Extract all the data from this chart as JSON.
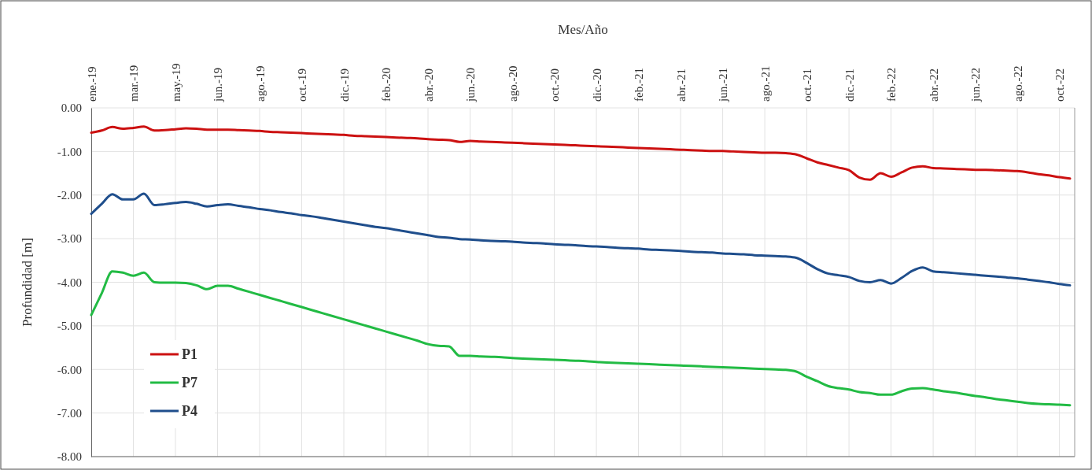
{
  "chart_data": {
    "type": "line",
    "xlabel": "Mes/Año",
    "ylabel": "Profundidad [m]",
    "categories": [
      "ene.-19",
      null,
      null,
      null,
      "mar.-19",
      null,
      null,
      null,
      "may.-19",
      null,
      null,
      null,
      "jun.-19",
      null,
      null,
      null,
      "ago.-19",
      null,
      null,
      null,
      "oct.-19",
      null,
      null,
      null,
      "dic.-19",
      null,
      null,
      null,
      "feb.-20",
      null,
      null,
      null,
      "abr.-20",
      null,
      null,
      null,
      "jun.-20",
      null,
      null,
      null,
      "ago.-20",
      null,
      null,
      null,
      "oct.-20",
      null,
      null,
      null,
      "dic.-20",
      null,
      null,
      null,
      "feb.-21",
      null,
      null,
      null,
      "abr.-21",
      null,
      null,
      null,
      "jun.-21",
      null,
      null,
      null,
      "ago.-21",
      null,
      null,
      null,
      "oct.-21",
      null,
      null,
      null,
      "dic.-21",
      null,
      null,
      null,
      "feb.-22",
      null,
      null,
      null,
      "abr.-22",
      null,
      null,
      null,
      "jun.-22",
      null,
      null,
      null,
      "ago.-22",
      null,
      null,
      null,
      "oct.-22",
      null
    ],
    "ylim": [
      -8,
      0
    ],
    "yticks": [
      {
        "value": 0,
        "label": "0.00"
      },
      {
        "value": -1,
        "label": "-1.00"
      },
      {
        "value": -2,
        "label": "-2.00"
      },
      {
        "value": -3,
        "label": "-3.00"
      },
      {
        "value": -4,
        "label": "-4.00"
      },
      {
        "value": -5,
        "label": "-5.00"
      },
      {
        "value": -6,
        "label": "-6.00"
      },
      {
        "value": -7,
        "label": "-7.00"
      },
      {
        "value": -8,
        "label": "-8.00"
      }
    ],
    "grid": true,
    "legend": "bottom left",
    "line_style": "solid",
    "series": [
      {
        "name": "P1",
        "color": "#cc1111",
        "values": [
          -0.57,
          -0.52,
          -0.44,
          -0.48,
          -0.46,
          -0.43,
          -0.52,
          -0.51,
          -0.49,
          -0.47,
          -0.48,
          -0.5,
          -0.5,
          -0.5,
          -0.51,
          -0.52,
          -0.53,
          -0.55,
          -0.56,
          -0.57,
          -0.58,
          -0.59,
          -0.6,
          -0.61,
          -0.62,
          -0.64,
          -0.65,
          -0.66,
          -0.67,
          -0.68,
          -0.69,
          -0.7,
          -0.72,
          -0.73,
          -0.74,
          -0.78,
          -0.76,
          -0.77,
          -0.78,
          -0.79,
          -0.8,
          -0.81,
          -0.82,
          -0.83,
          -0.84,
          -0.85,
          -0.86,
          -0.87,
          -0.88,
          -0.89,
          -0.9,
          -0.91,
          -0.92,
          -0.93,
          -0.94,
          -0.95,
          -0.96,
          -0.97,
          -0.98,
          -0.99,
          -0.99,
          -1.0,
          -1.01,
          -1.02,
          -1.03,
          -1.03,
          -1.04,
          -1.07,
          -1.16,
          -1.25,
          -1.31,
          -1.37,
          -1.43,
          -1.6,
          -1.65,
          -1.5,
          -1.58,
          -1.48,
          -1.37,
          -1.34,
          -1.38,
          -1.39,
          -1.4,
          -1.41,
          -1.42,
          -1.42,
          -1.43,
          -1.44,
          -1.45,
          -1.48,
          -1.52,
          -1.55,
          -1.59,
          -1.62
        ]
      },
      {
        "name": "P7",
        "color": "#22bb44",
        "values": [
          -4.75,
          -4.25,
          -3.75,
          -3.78,
          -3.85,
          -3.78,
          -4.0,
          -4.01,
          -4.01,
          -4.02,
          -4.07,
          -4.16,
          -4.08,
          -4.08,
          -4.15,
          -4.22,
          -4.29,
          -4.36,
          -4.43,
          -4.5,
          -4.57,
          -4.64,
          -4.71,
          -4.78,
          -4.85,
          -4.92,
          -4.99,
          -5.06,
          -5.13,
          -5.2,
          -5.27,
          -5.34,
          -5.42,
          -5.46,
          -5.47,
          -5.69,
          -5.69,
          -5.7,
          -5.71,
          -5.72,
          -5.74,
          -5.75,
          -5.76,
          -5.77,
          -5.78,
          -5.79,
          -5.8,
          -5.81,
          -5.83,
          -5.84,
          -5.85,
          -5.86,
          -5.87,
          -5.88,
          -5.89,
          -5.9,
          -5.91,
          -5.92,
          -5.93,
          -5.94,
          -5.95,
          -5.96,
          -5.97,
          -5.98,
          -5.99,
          -6.0,
          -6.01,
          -6.05,
          -6.17,
          -6.27,
          -6.38,
          -6.43,
          -6.46,
          -6.52,
          -6.54,
          -6.58,
          -6.58,
          -6.5,
          -6.44,
          -6.43,
          -6.46,
          -6.5,
          -6.53,
          -6.57,
          -6.61,
          -6.64,
          -6.68,
          -6.71,
          -6.74,
          -6.77,
          -6.79,
          -6.8,
          -6.81,
          -6.82
        ]
      },
      {
        "name": "P4",
        "color": "#1f4e8c",
        "values": [
          -2.43,
          -2.2,
          -1.98,
          -2.1,
          -2.1,
          -1.97,
          -2.23,
          -2.21,
          -2.18,
          -2.16,
          -2.2,
          -2.26,
          -2.23,
          -2.21,
          -2.25,
          -2.28,
          -2.32,
          -2.35,
          -2.39,
          -2.42,
          -2.46,
          -2.49,
          -2.53,
          -2.57,
          -2.61,
          -2.65,
          -2.69,
          -2.73,
          -2.76,
          -2.8,
          -2.84,
          -2.88,
          -2.92,
          -2.96,
          -2.98,
          -3.01,
          -3.02,
          -3.04,
          -3.05,
          -3.06,
          -3.07,
          -3.09,
          -3.1,
          -3.11,
          -3.13,
          -3.14,
          -3.15,
          -3.17,
          -3.18,
          -3.19,
          -3.21,
          -3.22,
          -3.23,
          -3.25,
          -3.26,
          -3.27,
          -3.28,
          -3.3,
          -3.31,
          -3.32,
          -3.34,
          -3.35,
          -3.36,
          -3.38,
          -3.39,
          -3.4,
          -3.41,
          -3.44,
          -3.56,
          -3.7,
          -3.8,
          -3.84,
          -3.88,
          -3.97,
          -4.0,
          -3.95,
          -4.03,
          -3.9,
          -3.74,
          -3.66,
          -3.75,
          -3.77,
          -3.79,
          -3.81,
          -3.83,
          -3.85,
          -3.87,
          -3.89,
          -3.91,
          -3.94,
          -3.97,
          -4.0,
          -4.04,
          -4.07
        ]
      }
    ]
  }
}
